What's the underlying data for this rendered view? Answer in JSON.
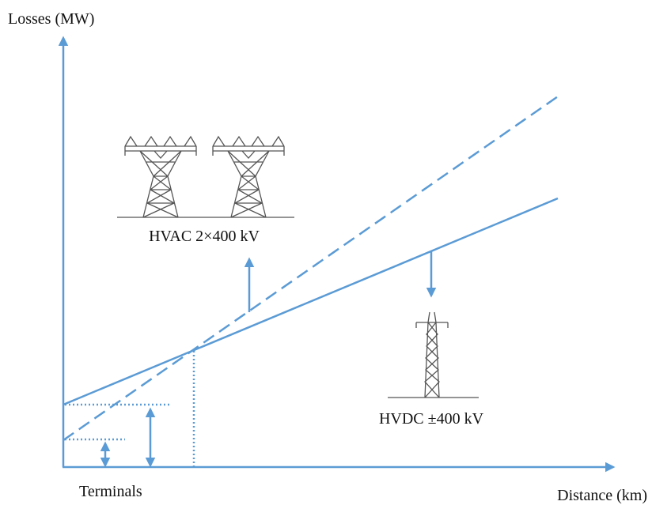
{
  "axes": {
    "y_label": "Losses (MW)",
    "x_label": "Distance (km)"
  },
  "labels": {
    "terminals": "Terminals",
    "hvac": "HVAC 2×400 kV",
    "hvdc": "HVDC ±400 kV"
  }
}
